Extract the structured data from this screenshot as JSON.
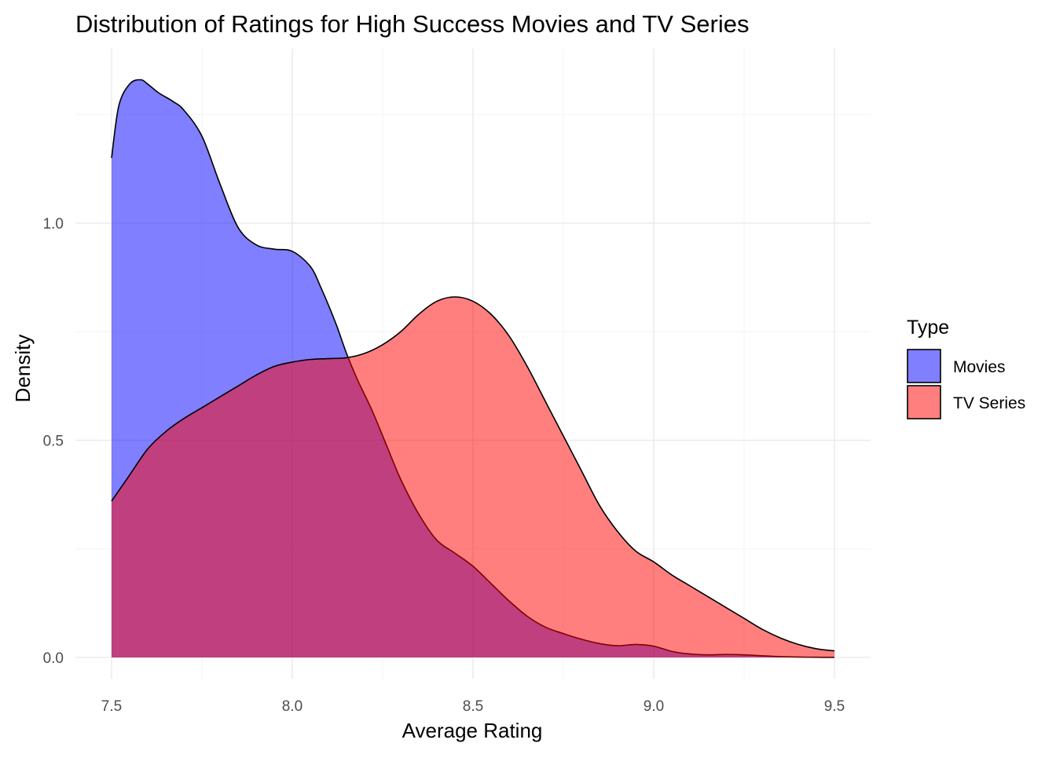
{
  "chart_data": {
    "type": "area",
    "title": "Distribution of Ratings for High Success Movies and TV Series",
    "xlabel": "Average Rating",
    "ylabel": "Density",
    "xlim": [
      7.4,
      9.6
    ],
    "ylim": [
      -0.05,
      1.4
    ],
    "x_ticks": [
      7.5,
      8.0,
      8.5,
      9.0,
      9.5
    ],
    "x_tick_labels": [
      "7.5",
      "8.0",
      "8.5",
      "9.0",
      "9.5"
    ],
    "y_ticks": [
      0.0,
      0.5,
      1.0
    ],
    "y_tick_labels": [
      "0.0",
      "0.5",
      "1.0"
    ],
    "grid": true,
    "legend": {
      "title": "Type",
      "position": "right"
    },
    "series": [
      {
        "name": "Movies",
        "color": "#0000FF",
        "opacity": 0.5,
        "x": [
          7.5,
          7.52,
          7.55,
          7.58,
          7.6,
          7.63,
          7.67,
          7.7,
          7.75,
          7.8,
          7.85,
          7.9,
          7.95,
          8.0,
          8.05,
          8.08,
          8.12,
          8.15,
          8.18,
          8.22,
          8.26,
          8.3,
          8.35,
          8.4,
          8.45,
          8.5,
          8.55,
          8.6,
          8.65,
          8.7,
          8.75,
          8.8,
          8.85,
          8.9,
          8.95,
          9.0,
          9.05,
          9.1,
          9.15,
          9.2,
          9.25,
          9.3,
          9.35,
          9.4,
          9.45,
          9.5
        ],
        "y": [
          1.15,
          1.27,
          1.32,
          1.33,
          1.32,
          1.3,
          1.28,
          1.26,
          1.2,
          1.09,
          0.99,
          0.95,
          0.94,
          0.935,
          0.9,
          0.85,
          0.77,
          0.7,
          0.64,
          0.57,
          0.49,
          0.41,
          0.33,
          0.27,
          0.24,
          0.21,
          0.17,
          0.13,
          0.095,
          0.07,
          0.055,
          0.042,
          0.032,
          0.027,
          0.03,
          0.026,
          0.014,
          0.008,
          0.006,
          0.007,
          0.006,
          0.004,
          0.002,
          0.001,
          0.0005,
          0.0003
        ]
      },
      {
        "name": "TV Series",
        "color": "#FF0000",
        "opacity": 0.5,
        "x": [
          7.5,
          7.55,
          7.6,
          7.65,
          7.7,
          7.75,
          7.8,
          7.85,
          7.9,
          7.95,
          8.0,
          8.05,
          8.1,
          8.15,
          8.2,
          8.25,
          8.3,
          8.35,
          8.4,
          8.45,
          8.5,
          8.55,
          8.6,
          8.65,
          8.7,
          8.75,
          8.8,
          8.85,
          8.9,
          8.95,
          9.0,
          9.05,
          9.1,
          9.15,
          9.2,
          9.25,
          9.3,
          9.35,
          9.4,
          9.45,
          9.5
        ],
        "y": [
          0.36,
          0.42,
          0.48,
          0.52,
          0.55,
          0.575,
          0.6,
          0.625,
          0.65,
          0.67,
          0.68,
          0.686,
          0.688,
          0.69,
          0.7,
          0.72,
          0.75,
          0.79,
          0.82,
          0.83,
          0.82,
          0.79,
          0.74,
          0.67,
          0.59,
          0.51,
          0.43,
          0.35,
          0.29,
          0.245,
          0.22,
          0.19,
          0.165,
          0.14,
          0.115,
          0.09,
          0.065,
          0.045,
          0.03,
          0.02,
          0.015
        ]
      }
    ]
  }
}
